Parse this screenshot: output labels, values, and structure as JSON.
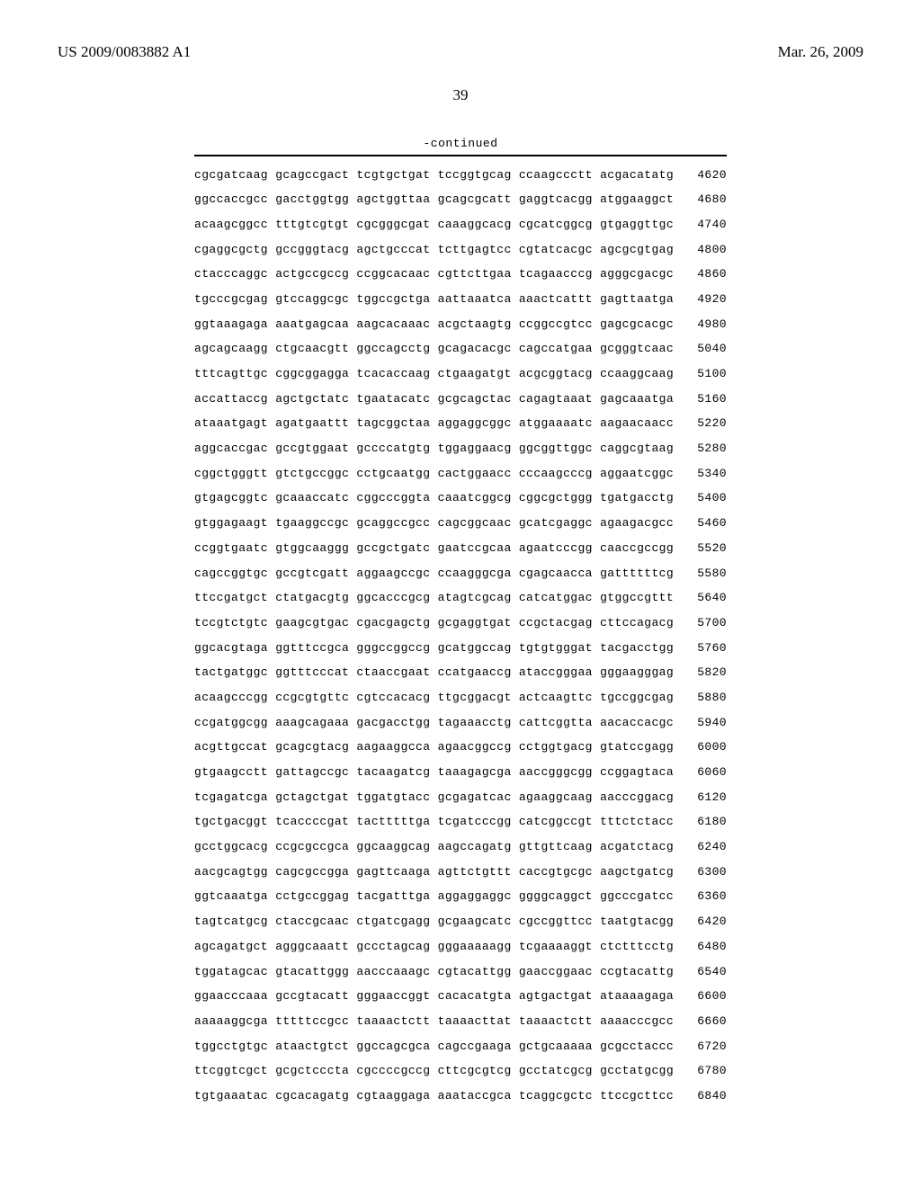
{
  "header": {
    "publication_number": "US 2009/0083882 A1",
    "publication_date": "Mar. 26, 2009"
  },
  "page_number": "39",
  "continued_label": "-continued",
  "sequence": {
    "group_size": 10,
    "groups_per_line": 6,
    "font_family": "Courier New",
    "font_size_pt": 10,
    "text_color": "#000000",
    "background_color": "#ffffff",
    "rule_color": "#000000",
    "rows": [
      {
        "groups": [
          "cgcgatcaag",
          "gcagccgact",
          "tcgtgctgat",
          "tccggtgcag",
          "ccaagccctt",
          "acgacatatg"
        ],
        "pos": 4620
      },
      {
        "groups": [
          "ggccaccgcc",
          "gacctggtgg",
          "agctggttaa",
          "gcagcgcatt",
          "gaggtcacgg",
          "atggaaggct"
        ],
        "pos": 4680
      },
      {
        "groups": [
          "acaagcggcc",
          "tttgtcgtgt",
          "cgcgggcgat",
          "caaaggcacg",
          "cgcatcggcg",
          "gtgaggttgc"
        ],
        "pos": 4740
      },
      {
        "groups": [
          "cgaggcgctg",
          "gccgggtacg",
          "agctgcccat",
          "tcttgagtcc",
          "cgtatcacgc",
          "agcgcgtgag"
        ],
        "pos": 4800
      },
      {
        "groups": [
          "ctacccaggc",
          "actgccgccg",
          "ccggcacaac",
          "cgttcttgaa",
          "tcagaacccg",
          "agggcgacgc"
        ],
        "pos": 4860
      },
      {
        "groups": [
          "tgcccgcgag",
          "gtccaggcgc",
          "tggccgctga",
          "aattaaatca",
          "aaactcattt",
          "gagttaatga"
        ],
        "pos": 4920
      },
      {
        "groups": [
          "ggtaaagaga",
          "aaatgagcaa",
          "aagcacaaac",
          "acgctaagtg",
          "ccggccgtcc",
          "gagcgcacgc"
        ],
        "pos": 4980
      },
      {
        "groups": [
          "agcagcaagg",
          "ctgcaacgtt",
          "ggccagcctg",
          "gcagacacgc",
          "cagccatgaa",
          "gcgggtcaac"
        ],
        "pos": 5040
      },
      {
        "groups": [
          "tttcagttgc",
          "cggcggagga",
          "tcacaccaag",
          "ctgaagatgt",
          "acgcggtacg",
          "ccaaggcaag"
        ],
        "pos": 5100
      },
      {
        "groups": [
          "accattaccg",
          "agctgctatc",
          "tgaatacatc",
          "gcgcagctac",
          "cagagtaaat",
          "gagcaaatga"
        ],
        "pos": 5160
      },
      {
        "groups": [
          "ataaatgagt",
          "agatgaattt",
          "tagcggctaa",
          "aggaggcggc",
          "atggaaaatc",
          "aagaacaacc"
        ],
        "pos": 5220
      },
      {
        "groups": [
          "aggcaccgac",
          "gccgtggaat",
          "gccccatgtg",
          "tggaggaacg",
          "ggcggttggc",
          "caggcgtaag"
        ],
        "pos": 5280
      },
      {
        "groups": [
          "cggctgggtt",
          "gtctgccggc",
          "cctgcaatgg",
          "cactggaacc",
          "cccaagcccg",
          "aggaatcggc"
        ],
        "pos": 5340
      },
      {
        "groups": [
          "gtgagcggtc",
          "gcaaaccatc",
          "cggcccggta",
          "caaatcggcg",
          "cggcgctggg",
          "tgatgacctg"
        ],
        "pos": 5400
      },
      {
        "groups": [
          "gtggagaagt",
          "tgaaggccgc",
          "gcaggccgcc",
          "cagcggcaac",
          "gcatcgaggc",
          "agaagacgcc"
        ],
        "pos": 5460
      },
      {
        "groups": [
          "ccggtgaatc",
          "gtggcaaggg",
          "gccgctgatc",
          "gaatccgcaa",
          "agaatcccgg",
          "caaccgccgg"
        ],
        "pos": 5520
      },
      {
        "groups": [
          "cagccggtgc",
          "gccgtcgatt",
          "aggaagccgc",
          "ccaagggcga",
          "cgagcaacca",
          "gattttttcg"
        ],
        "pos": 5580
      },
      {
        "groups": [
          "ttccgatgct",
          "ctatgacgtg",
          "ggcacccgcg",
          "atagtcgcag",
          "catcatggac",
          "gtggccgttt"
        ],
        "pos": 5640
      },
      {
        "groups": [
          "tccgtctgtc",
          "gaagcgtgac",
          "cgacgagctg",
          "gcgaggtgat",
          "ccgctacgag",
          "cttccagacg"
        ],
        "pos": 5700
      },
      {
        "groups": [
          "ggcacgtaga",
          "ggtttccgca",
          "gggccggccg",
          "gcatggccag",
          "tgtgtgggat",
          "tacgacctgg"
        ],
        "pos": 5760
      },
      {
        "groups": [
          "tactgatggc",
          "ggtttcccat",
          "ctaaccgaat",
          "ccatgaaccg",
          "ataccgggaa",
          "gggaagggag"
        ],
        "pos": 5820
      },
      {
        "groups": [
          "acaagcccgg",
          "ccgcgtgttc",
          "cgtccacacg",
          "ttgcggacgt",
          "actcaagttc",
          "tgccggcgag"
        ],
        "pos": 5880
      },
      {
        "groups": [
          "ccgatggcgg",
          "aaagcagaaa",
          "gacgacctgg",
          "tagaaacctg",
          "cattcggtta",
          "aacaccacgc"
        ],
        "pos": 5940
      },
      {
        "groups": [
          "acgttgccat",
          "gcagcgtacg",
          "aagaaggcca",
          "agaacggccg",
          "cctggtgacg",
          "gtatccgagg"
        ],
        "pos": 6000
      },
      {
        "groups": [
          "gtgaagcctt",
          "gattagccgc",
          "tacaagatcg",
          "taaagagcga",
          "aaccgggcgg",
          "ccggagtaca"
        ],
        "pos": 6060
      },
      {
        "groups": [
          "tcgagatcga",
          "gctagctgat",
          "tggatgtacc",
          "gcgagatcac",
          "agaaggcaag",
          "aacccggacg"
        ],
        "pos": 6120
      },
      {
        "groups": [
          "tgctgacggt",
          "tcaccccgat",
          "tactttttga",
          "tcgatcccgg",
          "catcggccgt",
          "tttctctacc"
        ],
        "pos": 6180
      },
      {
        "groups": [
          "gcctggcacg",
          "ccgcgccgca",
          "ggcaaggcag",
          "aagccagatg",
          "gttgttcaag",
          "acgatctacg"
        ],
        "pos": 6240
      },
      {
        "groups": [
          "aacgcagtgg",
          "cagcgccgga",
          "gagttcaaga",
          "agttctgttt",
          "caccgtgcgc",
          "aagctgatcg"
        ],
        "pos": 6300
      },
      {
        "groups": [
          "ggtcaaatga",
          "cctgccggag",
          "tacgatttga",
          "aggaggaggc",
          "ggggcaggct",
          "ggcccgatcc"
        ],
        "pos": 6360
      },
      {
        "groups": [
          "tagtcatgcg",
          "ctaccgcaac",
          "ctgatcgagg",
          "gcgaagcatc",
          "cgccggttcc",
          "taatgtacgg"
        ],
        "pos": 6420
      },
      {
        "groups": [
          "agcagatgct",
          "agggcaaatt",
          "gccctagcag",
          "gggaaaaagg",
          "tcgaaaaggt",
          "ctctttcctg"
        ],
        "pos": 6480
      },
      {
        "groups": [
          "tggatagcac",
          "gtacattggg",
          "aacccaaagc",
          "cgtacattgg",
          "gaaccggaac",
          "ccgtacattg"
        ],
        "pos": 6540
      },
      {
        "groups": [
          "ggaacccaaa",
          "gccgtacatt",
          "gggaaccggt",
          "cacacatgta",
          "agtgactgat",
          "ataaaagaga"
        ],
        "pos": 6600
      },
      {
        "groups": [
          "aaaaaggcga",
          "tttttccgcc",
          "taaaactctt",
          "taaaacttat",
          "taaaactctt",
          "aaaacccgcc"
        ],
        "pos": 6660
      },
      {
        "groups": [
          "tggcctgtgc",
          "ataactgtct",
          "ggccagcgca",
          "cagccgaaga",
          "gctgcaaaaa",
          "gcgcctaccc"
        ],
        "pos": 6720
      },
      {
        "groups": [
          "ttcggtcgct",
          "gcgctcccta",
          "cgccccgccg",
          "cttcgcgtcg",
          "gcctatcgcg",
          "gcctatgcgg"
        ],
        "pos": 6780
      },
      {
        "groups": [
          "tgtgaaatac",
          "cgcacagatg",
          "cgtaaggaga",
          "aaataccgca",
          "tcaggcgctc",
          "ttccgcttcc"
        ],
        "pos": 6840
      }
    ]
  }
}
